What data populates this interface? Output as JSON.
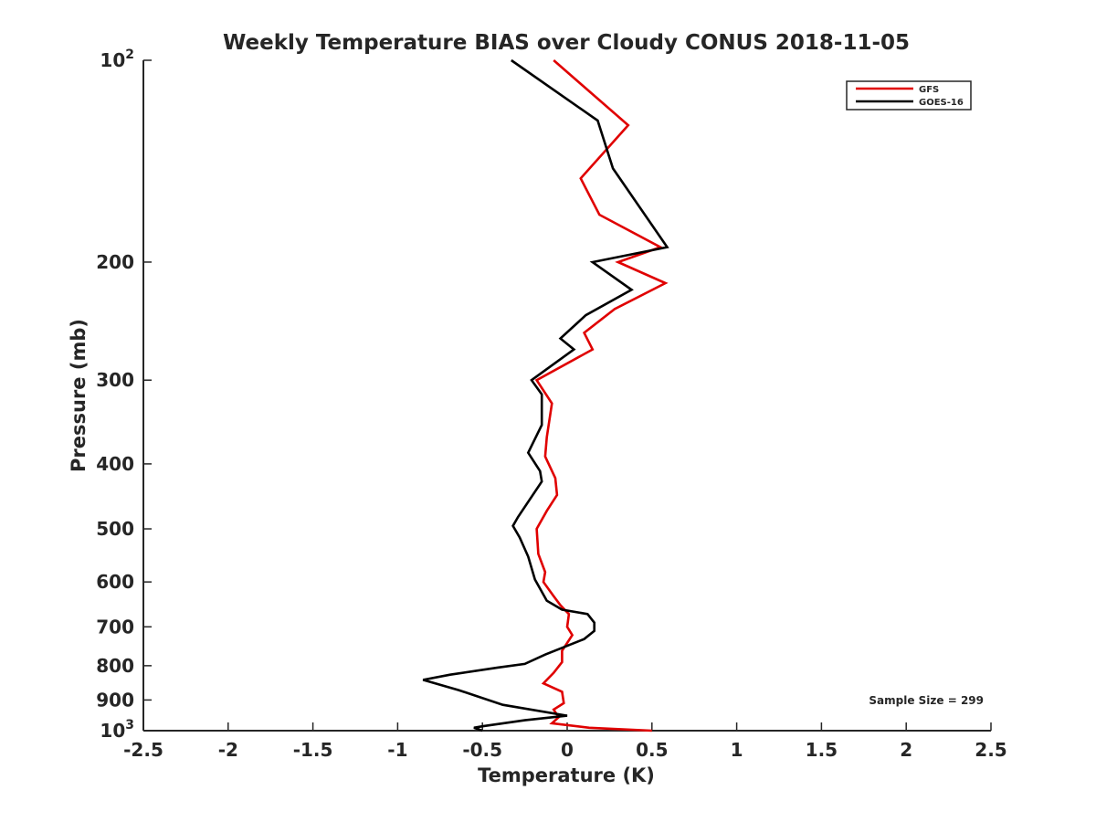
{
  "chart_data": {
    "type": "line",
    "title": "Weekly Temperature BIAS over Cloudy CONUS 2018-11-05",
    "xlabel": "Temperature (K)",
    "ylabel": "Pressure (mb)",
    "xlim": [
      -2.5,
      2.5
    ],
    "ylim": [
      100,
      1000
    ],
    "y_scale": "log",
    "y_reversed": true,
    "grid": false,
    "legend_position": "top-right",
    "x_ticks": [
      {
        "value": -2.5,
        "label": "-2.5"
      },
      {
        "value": -2,
        "label": "-2"
      },
      {
        "value": -1.5,
        "label": "-1.5"
      },
      {
        "value": -1,
        "label": "-1"
      },
      {
        "value": -0.5,
        "label": "-0.5"
      },
      {
        "value": 0,
        "label": "0"
      },
      {
        "value": 0.5,
        "label": "0.5"
      },
      {
        "value": 1,
        "label": "1"
      },
      {
        "value": 1.5,
        "label": "1.5"
      },
      {
        "value": 2,
        "label": "2"
      },
      {
        "value": 2.5,
        "label": "2.5"
      }
    ],
    "y_ticks": [
      {
        "value": 100,
        "base": "10",
        "exp": "2"
      },
      {
        "value": 200,
        "label": "200"
      },
      {
        "value": 300,
        "label": "300"
      },
      {
        "value": 400,
        "label": "400"
      },
      {
        "value": 500,
        "label": "500"
      },
      {
        "value": 600,
        "label": "600"
      },
      {
        "value": 700,
        "label": "700"
      },
      {
        "value": 800,
        "label": "800"
      },
      {
        "value": 900,
        "label": "900"
      },
      {
        "value": 1000,
        "base": "10",
        "exp": "3"
      }
    ],
    "series": [
      {
        "name": "GFS",
        "color": "#e00000",
        "points": [
          [
            -0.08,
            100
          ],
          [
            0.36,
            125
          ],
          [
            0.08,
            150
          ],
          [
            0.19,
            170
          ],
          [
            0.55,
            190
          ],
          [
            0.3,
            200
          ],
          [
            0.58,
            215
          ],
          [
            0.28,
            235
          ],
          [
            0.1,
            255
          ],
          [
            0.15,
            270
          ],
          [
            -0.18,
            300
          ],
          [
            -0.09,
            325
          ],
          [
            -0.12,
            365
          ],
          [
            -0.13,
            390
          ],
          [
            -0.07,
            420
          ],
          [
            -0.06,
            445
          ],
          [
            -0.12,
            470
          ],
          [
            -0.18,
            500
          ],
          [
            -0.17,
            545
          ],
          [
            -0.13,
            580
          ],
          [
            -0.14,
            600
          ],
          [
            -0.08,
            630
          ],
          [
            -0.04,
            650
          ],
          [
            0.01,
            670
          ],
          [
            0,
            700
          ],
          [
            0.03,
            720
          ],
          [
            -0.03,
            760
          ],
          [
            -0.03,
            790
          ],
          [
            -0.08,
            820
          ],
          [
            -0.14,
            850
          ],
          [
            -0.03,
            875
          ],
          [
            -0.02,
            910
          ],
          [
            -0.08,
            930
          ],
          [
            -0.05,
            955
          ],
          [
            -0.09,
            975
          ],
          [
            0.13,
            990
          ],
          [
            0.5,
            1000
          ]
        ]
      },
      {
        "name": "GOES-16",
        "color": "#000000",
        "points": [
          [
            -0.33,
            100
          ],
          [
            0.18,
            123
          ],
          [
            0.27,
            145
          ],
          [
            0.59,
            190
          ],
          [
            0.15,
            200
          ],
          [
            0.38,
            220
          ],
          [
            0.11,
            240
          ],
          [
            -0.04,
            260
          ],
          [
            0.04,
            270
          ],
          [
            -0.21,
            300
          ],
          [
            -0.15,
            315
          ],
          [
            -0.15,
            350
          ],
          [
            -0.23,
            385
          ],
          [
            -0.16,
            410
          ],
          [
            -0.15,
            425
          ],
          [
            -0.29,
            480
          ],
          [
            -0.32,
            495
          ],
          [
            -0.28,
            515
          ],
          [
            -0.23,
            550
          ],
          [
            -0.19,
            595
          ],
          [
            -0.12,
            640
          ],
          [
            -0.03,
            660
          ],
          [
            0.12,
            670
          ],
          [
            0.16,
            690
          ],
          [
            0.16,
            710
          ],
          [
            0.1,
            730
          ],
          [
            -0.13,
            770
          ],
          [
            -0.25,
            795
          ],
          [
            -0.41,
            805
          ],
          [
            -0.69,
            825
          ],
          [
            -0.85,
            840
          ],
          [
            -0.64,
            870
          ],
          [
            -0.38,
            915
          ],
          [
            0,
            950
          ],
          [
            -0.25,
            965
          ],
          [
            -0.5,
            985
          ],
          [
            -0.55,
            990
          ],
          [
            -0.5,
            1000
          ]
        ]
      }
    ],
    "annotations": [
      {
        "text": "Sample Size = 299",
        "position": "bottom-right"
      }
    ]
  }
}
